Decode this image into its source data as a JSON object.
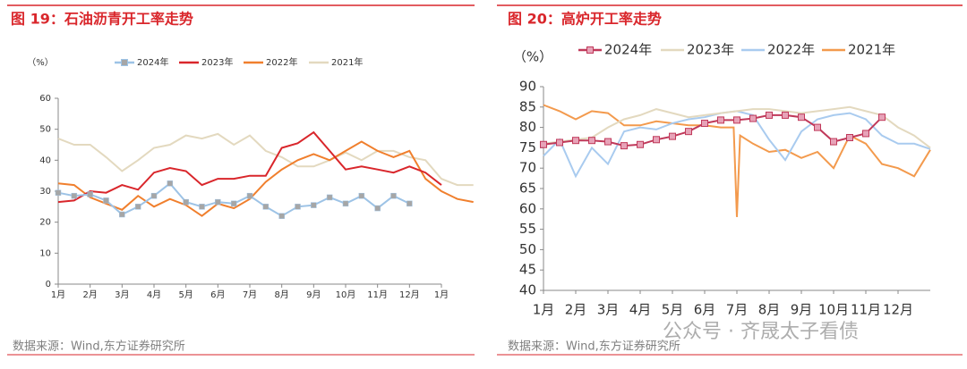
{
  "chart_data": [
    {
      "type": "line",
      "title": "图 19：石油沥青开工率走势",
      "y_unit": "（%）",
      "source": "数据来源：Wind,东方证券研究所",
      "xlim": [
        0,
        12
      ],
      "xticks": [
        {
          "value": 0,
          "label": "1月"
        },
        {
          "value": 1,
          "label": "2月"
        },
        {
          "value": 2,
          "label": "3月"
        },
        {
          "value": 3,
          "label": "4月"
        },
        {
          "value": 4,
          "label": "5月"
        },
        {
          "value": 5,
          "label": "6月"
        },
        {
          "value": 6,
          "label": "7月"
        },
        {
          "value": 7,
          "label": "8月"
        },
        {
          "value": 8,
          "label": "9月"
        },
        {
          "value": 9,
          "label": "10月"
        },
        {
          "value": 10,
          "label": "11月"
        },
        {
          "value": 11,
          "label": "12月"
        },
        {
          "value": 12,
          "label": "1月"
        }
      ],
      "ylim": [
        0,
        60
      ],
      "yticks": [
        0,
        10,
        20,
        30,
        40,
        50,
        60
      ],
      "grid": false,
      "legend": "top",
      "series": [
        {
          "name": "2024年",
          "color": "#9dc3e6",
          "marker": "square",
          "marker_color": "#a6a6a6",
          "x": [
            0,
            0.5,
            1,
            1.5,
            2,
            2.5,
            3,
            3.5,
            4,
            4.5,
            5,
            5.5,
            6,
            6.5,
            7,
            7.5,
            8,
            8.5,
            9,
            9.5,
            10,
            10.5,
            11
          ],
          "values": [
            29.5,
            28.5,
            29,
            27,
            22.5,
            25,
            28.5,
            32.5,
            26.5,
            25,
            26.5,
            26,
            28.5,
            25,
            22,
            25,
            25.5,
            28,
            26,
            28.5,
            24.5,
            28.5,
            26
          ]
        },
        {
          "name": "2023年",
          "color": "#d9262b",
          "x": [
            0,
            0.5,
            1,
            1.5,
            2,
            2.5,
            3,
            3.5,
            4,
            4.5,
            5,
            5.5,
            6,
            6.5,
            7,
            7.5,
            8,
            8.5,
            9,
            9.5,
            10,
            10.5,
            11,
            11.5,
            12
          ],
          "values": [
            26.5,
            27,
            30,
            29.5,
            32,
            30.5,
            36,
            37.5,
            36.5,
            32,
            34,
            34,
            35,
            35,
            44,
            45.5,
            49,
            43,
            37,
            38,
            37,
            36,
            38,
            36,
            32
          ]
        },
        {
          "name": "2022年",
          "color": "#f07f2d",
          "x": [
            0,
            0.5,
            1,
            1.5,
            2,
            2.5,
            3,
            3.5,
            4,
            4.5,
            5,
            5.5,
            6,
            6.5,
            7,
            7.5,
            8,
            8.5,
            9,
            9.5,
            10,
            10.5,
            11,
            11.5,
            12,
            12.5,
            13
          ],
          "values": [
            32.5,
            32,
            28,
            26,
            24,
            28.5,
            25,
            27.5,
            25.5,
            22,
            26,
            24.5,
            27.5,
            33,
            37,
            40,
            42,
            40,
            43,
            46,
            43,
            41,
            43,
            34,
            30,
            27.5,
            26.5
          ]
        },
        {
          "name": "2021年",
          "color": "#e3d9bf",
          "x": [
            0,
            0.5,
            1,
            1.5,
            2,
            2.5,
            3,
            3.5,
            4,
            4.5,
            5,
            5.5,
            6,
            6.5,
            7,
            7.5,
            8,
            8.5,
            9,
            9.5,
            10,
            10.5,
            11,
            11.5,
            12,
            12.5,
            13
          ],
          "values": [
            47,
            45,
            45,
            41,
            36.5,
            40,
            44,
            45,
            48,
            47,
            48.5,
            45,
            48,
            43,
            41,
            38,
            38,
            40,
            42.5,
            40,
            43,
            43,
            41,
            40,
            34,
            32,
            32
          ]
        }
      ]
    },
    {
      "type": "line",
      "title": "图 20：高炉开工率走势",
      "y_unit": "（%）",
      "source": "数据来源：Wind,东方证券研究所",
      "xlim": [
        0,
        12
      ],
      "xticks": [
        {
          "value": 0,
          "label": "1月"
        },
        {
          "value": 1,
          "label": "2月"
        },
        {
          "value": 2,
          "label": "3月"
        },
        {
          "value": 3,
          "label": "4月"
        },
        {
          "value": 4,
          "label": "5月"
        },
        {
          "value": 5,
          "label": "6月"
        },
        {
          "value": 6,
          "label": "7月"
        },
        {
          "value": 7,
          "label": "8月"
        },
        {
          "value": 8,
          "label": "9月"
        },
        {
          "value": 9,
          "label": "10月"
        },
        {
          "value": 10,
          "label": "11月"
        },
        {
          "value": 11,
          "label": "12月"
        }
      ],
      "ylim": [
        40,
        90
      ],
      "yticks": [
        40,
        45,
        50,
        55,
        60,
        65,
        70,
        75,
        80,
        85,
        90
      ],
      "grid": false,
      "legend": "top",
      "series": [
        {
          "name": "2024年",
          "color": "#c0395a",
          "marker": "square",
          "marker_color": "#e7a3b8",
          "x": [
            0,
            0.5,
            1,
            1.5,
            2,
            2.5,
            3,
            3.5,
            4,
            4.5,
            5,
            5.5,
            6,
            6.5,
            7,
            7.5,
            8,
            8.5,
            9,
            9.5,
            10,
            10.5
          ],
          "values": [
            75.8,
            76.3,
            76.8,
            76.8,
            76.5,
            75.5,
            75.8,
            77,
            77.8,
            79,
            81,
            81.8,
            81.8,
            82.2,
            83,
            83,
            82.5,
            80,
            76.5,
            77.5,
            78.5,
            82.5
          ]
        },
        {
          "name": "2023年",
          "color": "#e3d9bf",
          "x": [
            0,
            0.5,
            1,
            1.5,
            2,
            2.5,
            3,
            3.5,
            4,
            4.5,
            5,
            5.5,
            6,
            6.5,
            7,
            7.5,
            8,
            8.5,
            9,
            9.5,
            10,
            10.5,
            11,
            11.5,
            12
          ],
          "values": [
            76,
            76.5,
            77,
            77.5,
            80,
            82,
            83,
            84.5,
            83.5,
            82.5,
            83,
            83.5,
            84,
            84.5,
            84.5,
            84,
            83.5,
            84,
            84.5,
            85,
            84,
            83,
            80,
            78,
            75
          ]
        },
        {
          "name": "2022年",
          "color": "#a9cbef",
          "x": [
            0,
            0.5,
            1,
            1.5,
            2,
            2.5,
            3,
            3.5,
            4,
            4.5,
            5,
            5.5,
            6,
            6.5,
            7,
            7.5,
            8,
            8.5,
            9,
            9.5,
            10,
            10.5,
            11,
            11.5,
            12
          ],
          "values": [
            73,
            77,
            68,
            75,
            71,
            79,
            80,
            79.5,
            81,
            82,
            82.5,
            83.5,
            84,
            83,
            77,
            72,
            79,
            82,
            83,
            83.5,
            82,
            78,
            76,
            76,
            74.7
          ]
        },
        {
          "name": "2021年",
          "color": "#f39a4d",
          "x": [
            0,
            0.5,
            1,
            1.5,
            2,
            2.5,
            3,
            3.5,
            4,
            4.5,
            5,
            5.5,
            5.9,
            6,
            6.1,
            6.5,
            7,
            7.5,
            8,
            8.5,
            9,
            9.5,
            10,
            10.5,
            11,
            11.5,
            12
          ],
          "values": [
            85.5,
            84,
            82,
            84,
            83.5,
            80.5,
            80.5,
            81.5,
            81,
            80.5,
            80.5,
            80,
            80,
            58,
            78,
            76,
            74,
            74.5,
            72.5,
            74,
            70,
            78,
            76,
            71,
            70,
            68,
            74.5
          ]
        }
      ]
    }
  ],
  "watermark": "公众号 · 齐晟太子看债"
}
